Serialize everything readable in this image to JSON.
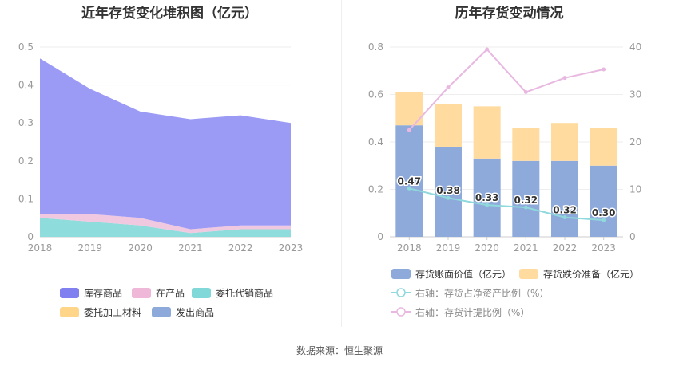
{
  "left_title": "近年存货变化堆积图（亿元）",
  "right_title": "历年存货变动情况",
  "source": "数据来源：恒生聚源",
  "chart_data": [
    {
      "type": "area",
      "title": "近年存货变化堆积图（亿元）",
      "x": [
        "2018",
        "2019",
        "2020",
        "2021",
        "2022",
        "2023"
      ],
      "ylim": [
        0,
        0.5
      ],
      "yticks": [
        "0",
        "0.1",
        "0.2",
        "0.3",
        "0.4",
        "0.5"
      ],
      "grid": true,
      "series": [
        {
          "name": "委托代销商品",
          "color": "#8fdcdc",
          "values": [
            0.05,
            0.04,
            0.03,
            0.01,
            0.02,
            0.02
          ]
        },
        {
          "name": "在产品",
          "color": "#f0c8e0",
          "values": [
            0.01,
            0.02,
            0.02,
            0.01,
            0.01,
            0.01
          ]
        },
        {
          "name": "库存商品",
          "color": "#9b9bf5",
          "values": [
            0.41,
            0.33,
            0.28,
            0.29,
            0.29,
            0.27
          ]
        },
        {
          "name": "委托加工材料",
          "color": "#ffd99a",
          "values": [
            0,
            0,
            0,
            0,
            0,
            0
          ]
        },
        {
          "name": "发出商品",
          "color": "#8eaadb",
          "values": [
            0,
            0,
            0,
            0,
            0,
            0
          ]
        }
      ],
      "legend": [
        {
          "name": "库存商品",
          "color": "#8080f0"
        },
        {
          "name": "在产品",
          "color": "#f0b8d8"
        },
        {
          "name": "委托代销商品",
          "color": "#80d8d8"
        },
        {
          "name": "委托加工材料",
          "color": "#ffd58a"
        },
        {
          "name": "发出商品",
          "color": "#8eaadb"
        }
      ]
    },
    {
      "type": "bar",
      "title": "历年存货变动情况",
      "categories": [
        "2018",
        "2019",
        "2020",
        "2021",
        "2022",
        "2023"
      ],
      "ylim": [
        0,
        0.8
      ],
      "yticks": [
        "0",
        "0.2",
        "0.4",
        "0.6",
        "0.8"
      ],
      "y2lim": [
        0,
        40
      ],
      "y2ticks": [
        "0",
        "10",
        "20",
        "30",
        "40"
      ],
      "series": [
        {
          "name": "存货账面价值（亿元）",
          "color": "#8eaadb",
          "values": [
            0.47,
            0.38,
            0.33,
            0.32,
            0.32,
            0.3
          ],
          "labels": [
            "0.47",
            "0.38",
            "0.33",
            "0.32",
            "0.32",
            "0.30"
          ]
        },
        {
          "name": "存货跌价准备（亿元）",
          "color": "#ffdba0",
          "values": [
            0.14,
            0.18,
            0.22,
            0.14,
            0.16,
            0.16
          ]
        },
        {
          "name": "右轴：存货占净资产比例（%）",
          "color": "#8fd8dc",
          "axis": "right",
          "values": [
            10.2,
            8.2,
            6.7,
            6.2,
            4.1,
            3.5
          ]
        },
        {
          "name": "右轴：存货计提比例（%）",
          "color": "#e8b8e0",
          "axis": "right",
          "values": [
            22.5,
            31.5,
            39.5,
            30.5,
            33.5,
            35.3
          ]
        }
      ]
    }
  ]
}
